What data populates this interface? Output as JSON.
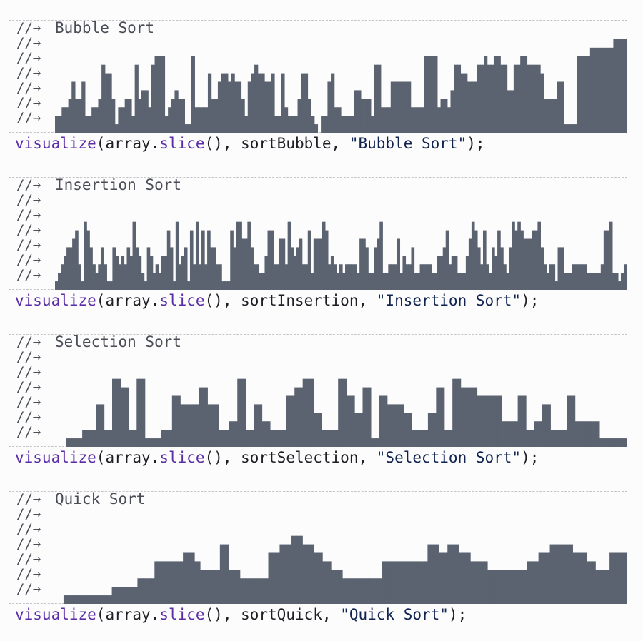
{
  "gutter_marker": "//→",
  "colors": {
    "bar": "#5b6270",
    "function": "#5b2da6",
    "string": "#112450",
    "text": "#1e1e24",
    "output": "#4a4d56"
  },
  "code_tokens": {
    "call": "visualize",
    "open": "(array",
    "dot": ".",
    "method": "slice",
    "mid": "(), ",
    "sep": ", ",
    "close": ");"
  },
  "sections": [
    {
      "label": "Bubble Sort",
      "fn_name": "sortBubble",
      "string_arg": "\"Bubble Sort\"",
      "values": [
        2,
        2,
        3,
        3,
        4,
        6,
        4,
        4,
        6,
        2,
        2,
        3,
        3,
        4,
        8,
        7,
        7,
        4,
        1,
        3,
        3,
        4,
        4,
        2,
        8,
        4,
        5,
        5,
        3,
        8,
        9,
        9,
        9,
        2,
        3,
        4,
        5,
        4,
        4,
        1,
        1,
        9,
        3,
        3,
        3,
        3,
        7,
        4,
        4,
        6,
        7,
        7,
        6,
        7,
        6,
        6,
        4,
        2,
        6,
        7,
        8,
        7,
        7,
        6,
        6,
        7,
        2,
        2,
        7,
        3,
        2,
        2,
        2,
        4,
        7,
        7,
        4,
        2,
        1,
        0,
        2,
        2,
        6,
        7,
        3,
        3,
        2,
        2,
        2,
        2,
        5,
        5,
        4,
        4,
        4,
        2,
        8,
        8,
        3,
        3,
        3,
        6,
        6,
        6,
        6,
        6,
        6,
        3,
        3,
        3,
        3,
        9,
        9,
        9,
        9,
        3,
        4,
        4,
        3,
        5,
        8,
        8,
        7,
        7,
        6,
        6,
        6,
        8,
        8,
        9,
        8,
        8,
        9,
        9,
        8,
        8,
        5,
        5,
        8,
        8,
        9,
        9,
        8,
        8,
        8,
        8,
        7,
        4,
        4,
        4,
        4,
        6,
        6,
        1,
        1,
        1,
        1,
        9,
        9,
        9,
        9,
        10,
        10,
        10,
        10,
        10,
        10,
        10,
        11,
        11,
        11,
        11
      ]
    },
    {
      "label": "Insertion Sort",
      "fn_name": "sortInsertion",
      "string_arg": "\"Insertion Sort\"",
      "values": [
        1,
        2,
        3,
        4,
        5,
        5,
        6,
        7,
        3,
        1,
        8,
        7,
        5,
        3,
        2,
        3,
        5,
        3,
        1,
        1,
        5,
        4,
        3,
        4,
        3,
        5,
        4,
        8,
        5,
        4,
        2,
        1,
        5,
        4,
        2,
        3,
        2,
        4,
        4,
        7,
        5,
        1,
        8,
        3,
        4,
        5,
        1,
        7,
        3,
        8,
        3,
        7,
        3,
        7,
        5,
        5,
        3,
        3,
        1,
        1,
        1,
        7,
        5,
        8,
        8,
        6,
        6,
        8,
        5,
        3,
        3,
        2,
        2,
        4,
        7,
        7,
        3,
        3,
        6,
        6,
        3,
        8,
        5,
        4,
        5,
        6,
        3,
        3,
        7,
        2,
        6,
        6,
        6,
        8,
        7,
        3,
        4,
        3,
        2,
        3,
        2,
        3,
        3,
        3,
        3,
        2,
        6,
        6,
        5,
        2,
        2,
        5,
        6,
        8,
        2,
        2,
        3,
        3,
        3,
        6,
        2,
        4,
        3,
        3,
        5,
        2,
        2,
        3,
        3,
        3,
        3,
        2,
        2,
        4,
        4,
        5,
        7,
        3,
        4,
        4,
        2,
        2,
        2,
        4,
        6,
        8,
        7,
        5,
        3,
        7,
        3,
        2,
        5,
        4,
        7,
        5,
        3,
        2,
        5,
        8,
        7,
        8,
        7,
        6,
        6,
        6,
        7,
        7,
        8,
        5,
        3,
        2,
        3,
        3,
        1,
        5,
        5,
        2,
        2,
        2,
        3,
        3,
        3,
        3,
        3,
        2,
        2,
        2,
        2,
        2,
        3,
        7,
        7,
        8,
        2,
        2,
        1,
        2,
        3
      ]
    },
    {
      "label": "Selection Sort",
      "fn_name": "sortSelection",
      "string_arg": "\"Selection Sort\"",
      "values": [
        0,
        0,
        0,
        0,
        1,
        1,
        1,
        1,
        1,
        1,
        2,
        2,
        2,
        2,
        2,
        5,
        5,
        5,
        2,
        2,
        2,
        8,
        8,
        8,
        7,
        7,
        7,
        2,
        2,
        2,
        8,
        8,
        8,
        1,
        1,
        1,
        1,
        1,
        1,
        2,
        2,
        2,
        2,
        6,
        6,
        6,
        5,
        5,
        5,
        5,
        5,
        5,
        5,
        7,
        7,
        7,
        5,
        5,
        5,
        5,
        2,
        2,
        2,
        2,
        3,
        3,
        3,
        8,
        8,
        8,
        2,
        2,
        2,
        5,
        5,
        5,
        3,
        3,
        3,
        2,
        2,
        2,
        2,
        2,
        2,
        6,
        6,
        6,
        7,
        7,
        7,
        8,
        8,
        8,
        8,
        4,
        4,
        4,
        2,
        2,
        2,
        2,
        2,
        2,
        8,
        8,
        8,
        6,
        6,
        6,
        4,
        4,
        4,
        7,
        7,
        7,
        1,
        1,
        1,
        6,
        6,
        6,
        5,
        5,
        5,
        5,
        5,
        5,
        4,
        4,
        4,
        2,
        2,
        2,
        2,
        2,
        2,
        4,
        4,
        4,
        7,
        7,
        7,
        2,
        2,
        2,
        8,
        8,
        8,
        7,
        7,
        7,
        7,
        7,
        7,
        6,
        6,
        6,
        6,
        6,
        6,
        6,
        6,
        6,
        3,
        3,
        3,
        3,
        3,
        3,
        6,
        6,
        6,
        2,
        2,
        2,
        3,
        3,
        3,
        5,
        5,
        5,
        2,
        2,
        2,
        2,
        2,
        2,
        6,
        6,
        6,
        3,
        3,
        3,
        3,
        3,
        3,
        3,
        3,
        3,
        1,
        1,
        1,
        1,
        1,
        1,
        1,
        1,
        1,
        1
      ]
    },
    {
      "label": "Quick Sort",
      "fn_name": "sortQuick",
      "string_arg": "\"Quick Sort\"",
      "values": [
        0,
        0,
        0,
        1,
        1,
        1,
        1,
        1,
        1,
        1,
        1,
        1,
        1,
        1,
        1,
        1,
        1,
        1,
        1,
        1,
        2,
        2,
        2,
        2,
        2,
        2,
        2,
        2,
        2,
        3,
        3,
        3,
        3,
        3,
        3,
        5,
        5,
        5,
        5,
        5,
        5,
        5,
        5,
        5,
        5,
        6,
        6,
        6,
        6,
        5,
        5,
        4,
        4,
        4,
        4,
        4,
        4,
        4,
        7,
        7,
        7,
        4,
        4,
        4,
        4,
        3,
        3,
        3,
        3,
        3,
        3,
        3,
        3,
        3,
        3,
        6,
        6,
        6,
        6,
        7,
        7,
        7,
        7,
        8,
        8,
        8,
        8,
        7,
        7,
        7,
        7,
        6,
        6,
        6,
        5,
        5,
        5,
        4,
        4,
        4,
        4,
        3,
        3,
        3,
        3,
        3,
        3,
        3,
        3,
        3,
        3,
        3,
        3,
        3,
        3,
        5,
        5,
        5,
        5,
        5,
        5,
        5,
        5,
        5,
        5,
        5,
        5,
        5,
        5,
        5,
        5,
        7,
        7,
        7,
        7,
        6,
        6,
        6,
        7,
        7,
        7,
        7,
        6,
        6,
        6,
        6,
        5,
        5,
        5,
        5,
        5,
        5,
        4,
        4,
        4,
        4,
        4,
        4,
        4,
        4,
        4,
        4,
        4,
        4,
        4,
        4,
        5,
        5,
        5,
        5,
        6,
        6,
        6,
        6,
        7,
        7,
        7,
        7,
        7,
        7,
        7,
        7,
        6,
        6,
        6,
        6,
        6,
        5,
        5,
        5,
        4,
        4,
        4,
        4,
        4,
        6,
        6,
        6,
        6,
        6,
        6
      ]
    }
  ]
}
